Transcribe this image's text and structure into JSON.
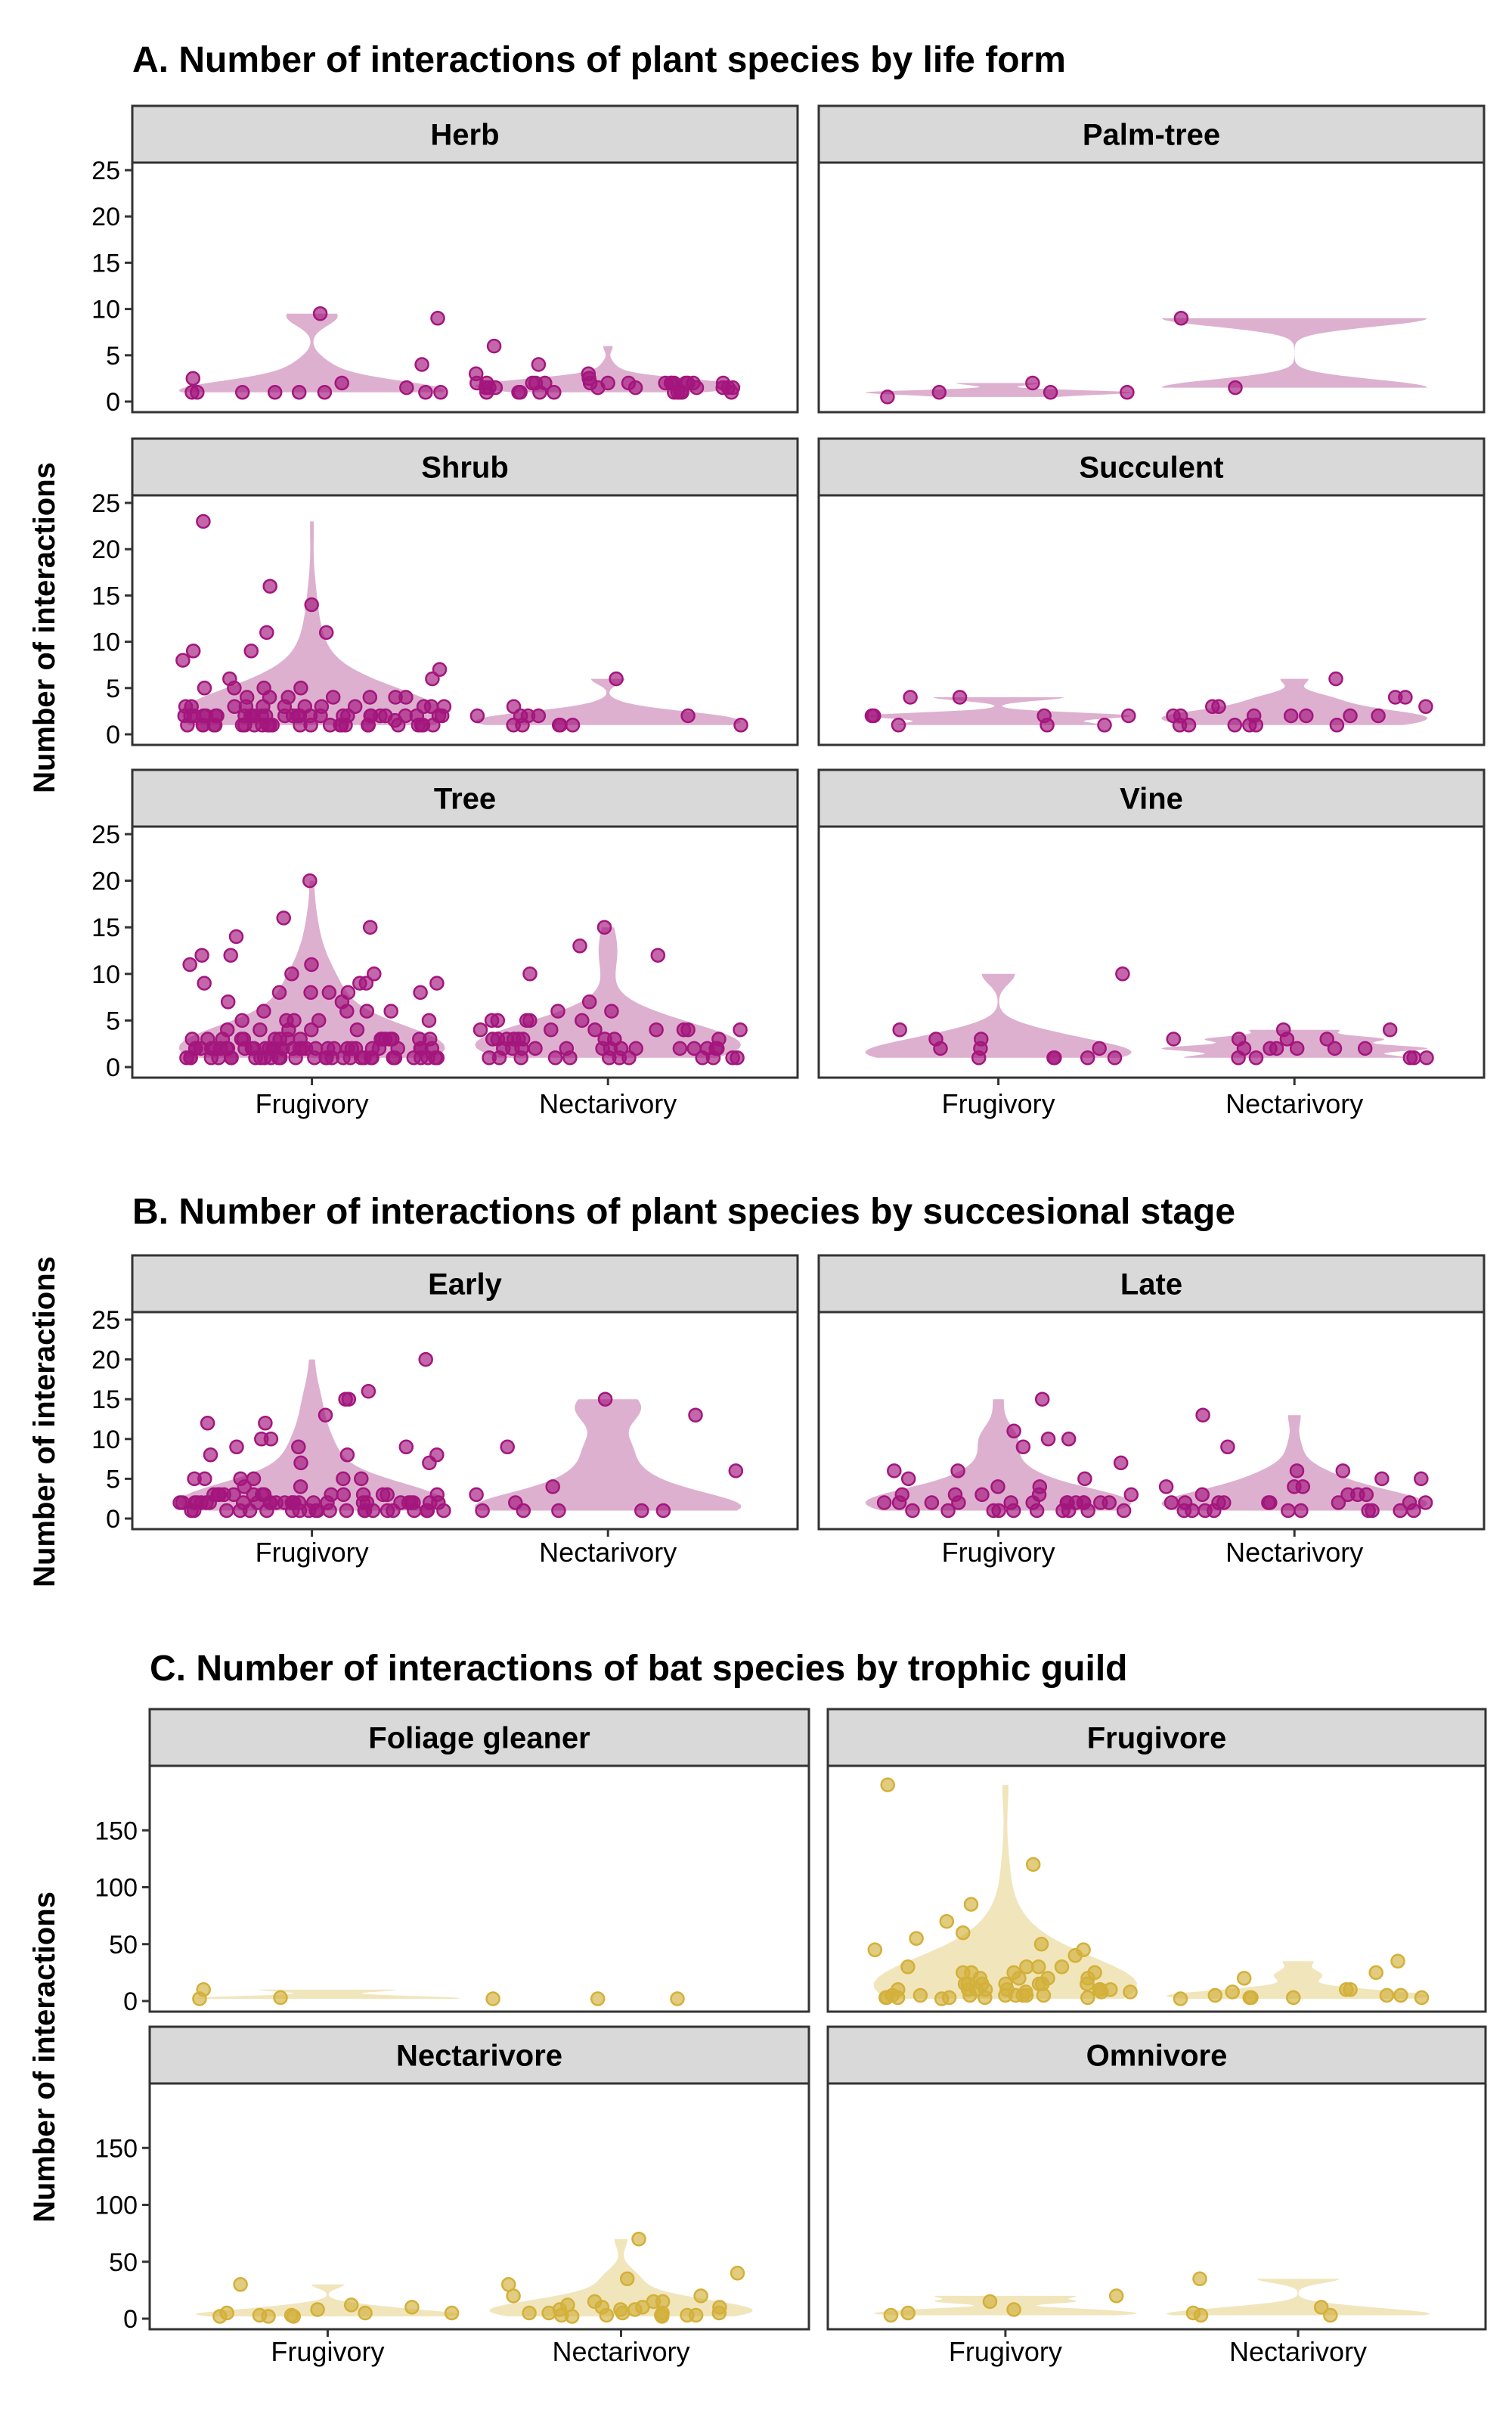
{
  "colors": {
    "plant_point": "#a3167d",
    "plant_violin": "#d7a2c7",
    "bat_point": "#d3b03a",
    "bat_violin": "#eee0b0",
    "strip_fill": "#d9d9d9"
  },
  "chart_data": [
    {
      "id": "A",
      "type": "scatter",
      "title": "A. Number of interactions of plant species by life form",
      "ylabel": "Number of interactions",
      "categories": [
        "Frugivory",
        "Nectarivory"
      ],
      "yticks": [
        0,
        5,
        10,
        15,
        20,
        25
      ],
      "ylim": [
        0,
        25
      ],
      "facets": [
        {
          "label": "Herb",
          "series": [
            {
              "category": "Frugivory",
              "values": [
                1,
                4,
                2,
                1,
                1,
                1.5,
                1,
                2.5,
                1,
                1,
                9,
                9.5,
                1,
                1
              ]
            },
            {
              "category": "Nectarivory",
              "values": [
                4,
                3,
                1,
                1,
                2,
                1.5,
                2,
                1.5,
                2,
                1.5,
                3,
                2,
                2.5,
                2,
                1.5,
                1,
                2,
                2,
                1,
                2,
                1.5,
                2,
                1,
                2,
                1.5,
                2,
                1,
                1,
                1.5,
                6,
                1,
                2,
                1.5,
                2,
                1,
                2,
                1.5,
                2,
                1,
                2
              ]
            }
          ]
        },
        {
          "label": "Palm-tree",
          "series": [
            {
              "category": "Frugivory",
              "values": [
                1,
                1,
                0.5,
                2,
                1
              ]
            },
            {
              "category": "Nectarivory",
              "values": [
                1.5,
                9
              ]
            }
          ]
        },
        {
          "label": "Shrub",
          "series": [
            {
              "category": "Frugivory",
              "values": [
                3,
                9,
                11,
                11,
                16,
                2,
                1,
                1,
                1.5,
                3,
                4,
                2,
                1,
                1,
                2,
                3,
                4,
                5,
                6,
                5,
                4,
                3,
                2,
                1,
                1,
                2,
                2,
                3,
                2,
                1,
                2,
                1,
                2,
                1,
                1,
                2,
                3,
                2,
                1,
                2,
                4,
                1,
                2,
                3,
                5,
                7,
                9,
                8,
                6,
                4,
                3,
                2,
                1,
                2,
                1,
                2,
                3,
                4,
                2,
                1,
                23,
                14,
                2,
                1,
                3,
                2,
                1,
                2,
                1,
                2,
                2,
                1,
                3,
                2,
                1,
                2,
                4,
                5,
                3,
                2,
                1,
                2,
                1,
                2,
                1,
                2,
                1,
                1,
                2
              ]
            },
            {
              "category": "Nectarivory",
              "values": [
                1,
                1,
                2,
                1,
                2,
                3,
                1,
                2,
                1,
                6,
                2,
                1,
                2
              ]
            }
          ]
        },
        {
          "label": "Succulent",
          "series": [
            {
              "category": "Frugivory",
              "values": [
                4,
                1,
                2,
                2,
                2,
                4,
                2,
                1,
                1
              ]
            },
            {
              "category": "Nectarivory",
              "values": [
                1,
                3,
                2,
                1,
                6,
                4,
                1,
                2,
                3,
                1,
                2,
                1,
                2,
                2,
                1,
                2,
                4,
                3,
                2
              ]
            }
          ]
        },
        {
          "label": "Tree",
          "series": [
            {
              "category": "Frugivory",
              "values": [
                16,
                12,
                8,
                10,
                8,
                5,
                3,
                2,
                1,
                1,
                2,
                3,
                1,
                2,
                1,
                14,
                11,
                11,
                8,
                8,
                6,
                7,
                7,
                5,
                3,
                2,
                1,
                1,
                2,
                3,
                4,
                2,
                1,
                2,
                1,
                2,
                3,
                2,
                1,
                1,
                2,
                3,
                1,
                2,
                1,
                3,
                4,
                5,
                5,
                6,
                4,
                3,
                2,
                1,
                1,
                2,
                3,
                2,
                1,
                2,
                20,
                5,
                9,
                9,
                2,
                4,
                3,
                2,
                1,
                1,
                2,
                1,
                15,
                12,
                8,
                6,
                4,
                3,
                2,
                2,
                1,
                2,
                1,
                3,
                2,
                1,
                9,
                10,
                9,
                6,
                3,
                2,
                1,
                2,
                1,
                2,
                1,
                2,
                1,
                2,
                3,
                1,
                2,
                1,
                2,
                1,
                2,
                1,
                3,
                2,
                1,
                2,
                1,
                2,
                3
              ]
            },
            {
              "category": "Nectarivory",
              "values": [
                13,
                4,
                3,
                2,
                1,
                12,
                10,
                7,
                5,
                4,
                3,
                2,
                1,
                2,
                3,
                4,
                5,
                6,
                5,
                4,
                3,
                2,
                1,
                1,
                2,
                3,
                2,
                1,
                2,
                4,
                5,
                6,
                5,
                4,
                3,
                2,
                1,
                2,
                1,
                2,
                3,
                1,
                2,
                1,
                15,
                4,
                3,
                3,
                2,
                1,
                2,
                1,
                2,
                1
              ]
            }
          ]
        },
        {
          "label": "Vine",
          "series": [
            {
              "category": "Frugivory",
              "values": [
                2,
                3,
                10,
                3,
                2,
                1,
                2,
                4,
                1,
                1,
                1,
                1
              ]
            },
            {
              "category": "Nectarivory",
              "values": [
                2,
                1,
                2,
                3,
                1,
                4,
                2,
                3,
                1,
                2,
                1,
                3,
                4,
                2,
                1,
                3,
                2
              ]
            }
          ]
        }
      ]
    },
    {
      "id": "B",
      "type": "scatter",
      "title": "B. Number of interactions of plant species by succesional stage",
      "ylabel": "Number of interactions",
      "categories": [
        "Frugivory",
        "Nectarivory"
      ],
      "yticks": [
        0,
        5,
        10,
        15,
        20,
        25
      ],
      "ylim": [
        0,
        25
      ],
      "facets": [
        {
          "label": "Early",
          "series": [
            {
              "category": "Frugivory",
              "values": [
                15,
                5,
                3,
                2,
                1,
                1,
                2,
                3,
                1,
                2,
                1,
                2,
                3,
                2,
                1,
                2,
                1,
                3,
                5,
                8,
                9,
                10,
                12,
                7,
                5,
                3,
                2,
                1,
                2,
                3,
                2,
                1,
                1,
                2,
                3,
                2,
                1,
                20,
                16,
                12,
                9,
                7,
                5,
                3,
                2,
                1,
                2,
                3,
                4,
                2,
                1,
                2,
                3,
                2,
                1,
                15,
                10,
                8,
                5,
                3,
                2,
                1,
                2,
                1,
                2,
                3,
                2,
                1,
                2,
                1,
                9,
                13,
                8,
                5,
                4,
                3,
                2,
                1,
                2,
                1,
                2,
                1,
                2,
                3,
                1,
                2,
                1,
                2
              ]
            },
            {
              "category": "Nectarivory",
              "values": [
                1,
                1,
                3,
                6,
                1,
                1,
                13,
                9,
                4,
                15,
                2,
                1
              ]
            }
          ]
        },
        {
          "label": "Late",
          "series": [
            {
              "category": "Frugivory",
              "values": [
                15,
                10,
                2,
                1,
                5,
                3,
                1,
                2,
                4,
                1,
                2,
                5,
                3,
                2,
                1,
                1,
                2,
                3,
                2,
                1,
                11,
                9,
                6,
                2,
                1,
                2,
                3,
                10,
                7,
                4,
                2,
                1,
                2,
                3,
                2,
                6,
                1,
                2,
                1,
                2
              ]
            },
            {
              "category": "Nectarivory",
              "values": [
                2,
                1,
                1,
                6,
                5,
                1,
                2,
                3,
                1,
                2,
                1,
                6,
                5,
                4,
                2,
                1,
                2,
                3,
                2,
                1,
                9,
                13,
                4,
                3,
                2,
                1,
                2,
                4,
                3,
                1,
                2,
                1
              ]
            }
          ]
        }
      ]
    },
    {
      "id": "C",
      "type": "scatter",
      "title": "C. Number of interactions of bat species by trophic guild",
      "ylabel": "Number of interactions",
      "categories": [
        "Frugivory",
        "Nectarivory"
      ],
      "yticks": [
        0,
        50,
        100,
        150
      ],
      "ylim": [
        0,
        200
      ],
      "facets": [
        {
          "label": "Foliage gleaner",
          "series": [
            {
              "category": "Frugivory",
              "values": [
                2,
                3,
                10
              ]
            },
            {
              "category": "Nectarivory",
              "values": [
                2,
                2,
                2
              ]
            }
          ]
        },
        {
          "label": "Frugivore",
          "series": [
            {
              "category": "Frugivory",
              "values": [
                190,
                10,
                5,
                20,
                15,
                3,
                5,
                8,
                25,
                30,
                45,
                50,
                10,
                5,
                3,
                8,
                20,
                25,
                15,
                10,
                5,
                3,
                30,
                60,
                85,
                55,
                40,
                25,
                20,
                15,
                10,
                8,
                5,
                3,
                2,
                10,
                15,
                30,
                45,
                70,
                120,
                25,
                15,
                10,
                5,
                3,
                20,
                30,
                10,
                5,
                15,
                3,
                5,
                10,
                15
              ]
            },
            {
              "category": "Nectarivory",
              "values": [
                2,
                3,
                5,
                10,
                20,
                25,
                3,
                5,
                35,
                10,
                8,
                3,
                5,
                3
              ]
            }
          ]
        },
        {
          "label": "Nectarivore",
          "series": [
            {
              "category": "Frugivory",
              "values": [
                2,
                8,
                5,
                3,
                2,
                10,
                5,
                12,
                3,
                2,
                30,
                5
              ]
            },
            {
              "category": "Nectarivory",
              "values": [
                20,
                8,
                2,
                15,
                40,
                70,
                30,
                5,
                3,
                10,
                15,
                20,
                35,
                8,
                5,
                3,
                5,
                10,
                15,
                5,
                3,
                8,
                3,
                10,
                5,
                3,
                12,
                2
              ]
            }
          ]
        },
        {
          "label": "Omnivore",
          "series": [
            {
              "category": "Frugivory",
              "values": [
                5,
                8,
                15,
                3,
                20
              ]
            },
            {
              "category": "Nectarivory",
              "values": [
                3,
                3,
                35,
                5,
                10
              ]
            }
          ]
        }
      ]
    }
  ]
}
